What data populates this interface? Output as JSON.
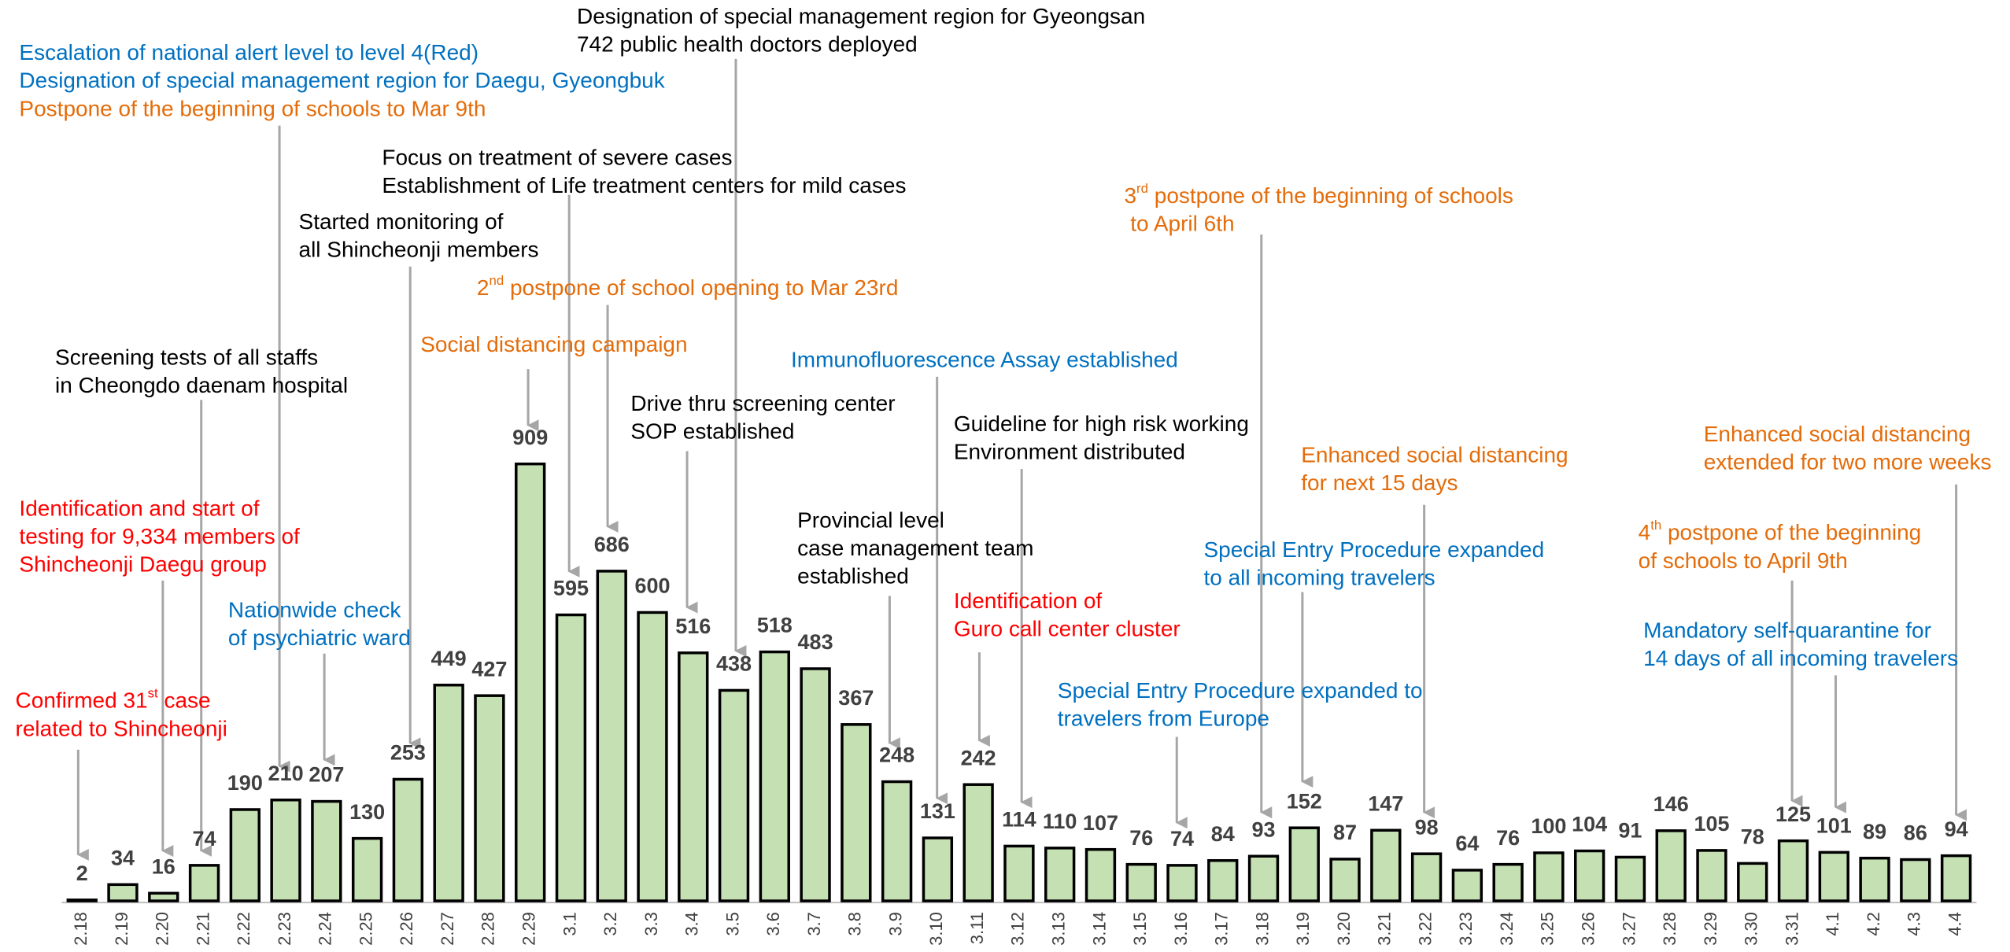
{
  "chart_data": {
    "type": "bar",
    "categories": [
      "2.18",
      "2.19",
      "2.20",
      "2.21",
      "2.22",
      "2.23",
      "2.24",
      "2.25",
      "2.26",
      "2.27",
      "2.28",
      "2.29",
      "3.1",
      "3.2",
      "3.3",
      "3.4",
      "3.5",
      "3.6",
      "3.7",
      "3.8",
      "3.9",
      "3.10",
      "3.11",
      "3.12",
      "3.13",
      "3.14",
      "3.15",
      "3.16",
      "3.17",
      "3.18",
      "3.19",
      "3.20",
      "3.21",
      "3.22",
      "3.23",
      "3.24",
      "3.25",
      "3.26",
      "3.27",
      "3.28",
      "3.29",
      "3.30",
      "3.31",
      "4.1",
      "4.2",
      "4.3",
      "4.4"
    ],
    "values": [
      2,
      34,
      16,
      74,
      190,
      210,
      207,
      130,
      253,
      449,
      427,
      909,
      595,
      686,
      600,
      516,
      438,
      518,
      483,
      367,
      248,
      131,
      242,
      114,
      110,
      107,
      76,
      74,
      84,
      93,
      152,
      87,
      147,
      98,
      64,
      76,
      100,
      104,
      91,
      146,
      105,
      78,
      125,
      101,
      89,
      86,
      94
    ],
    "color": "#c5e0b3",
    "annotations": [
      {
        "lines": [
          "Escalation of national alert level to level 4(Red)",
          "Designation of special management region for Daegu, Gyeongbuk"
        ],
        "color": "#0070c0"
      },
      {
        "lines": [
          "Postpone of the beginning of schools to Mar 9th"
        ],
        "color": "#e46c0a"
      },
      {
        "lines": [
          "Designation of special management region for Gyeongsan",
          "742 public health doctors deployed"
        ],
        "color": "#000000"
      },
      {
        "lines": [
          "Focus on treatment of severe cases",
          "Establishment of Life treatment centers for mild cases"
        ],
        "color": "#000000"
      },
      {
        "lines": [
          "Started monitoring of",
          "all Shincheonji members"
        ],
        "color": "#000000"
      },
      {
        "lines": [
          "2nd postpone of school opening to Mar 23rd"
        ],
        "color": "#e46c0a"
      },
      {
        "lines": [
          "Social distancing campaign"
        ],
        "color": "#e46c0a"
      },
      {
        "lines": [
          "Screening tests of all staffs",
          "in Cheongdo daenam hospital"
        ],
        "color": "#000000"
      },
      {
        "lines": [
          "Identification and start of",
          "testing for 9,334 members of",
          "Shincheonji Daegu group"
        ],
        "color": "#ff0000"
      },
      {
        "lines": [
          "Nationwide check",
          "of psychiatric ward"
        ],
        "color": "#0070c0"
      },
      {
        "lines": [
          "Confirmed 31st case",
          "related to Shincheonji"
        ],
        "color": "#ff0000"
      },
      {
        "lines": [
          "Immunofluorescence Assay established"
        ],
        "color": "#0070c0"
      },
      {
        "lines": [
          "Drive thru screening center",
          "SOP established"
        ],
        "color": "#000000"
      },
      {
        "lines": [
          "Guideline for high risk working",
          "Environment distributed"
        ],
        "color": "#000000"
      },
      {
        "lines": [
          "Provincial level",
          "case management team",
          "established"
        ],
        "color": "#000000"
      },
      {
        "lines": [
          "Identification of",
          "Guro call center cluster"
        ],
        "color": "#ff0000"
      },
      {
        "lines": [
          "3rd postpone of the beginning of schools",
          " to April 6th"
        ],
        "color": "#e46c0a"
      },
      {
        "lines": [
          "Enhanced social distancing",
          "for next 15 days"
        ],
        "color": "#e46c0a"
      },
      {
        "lines": [
          "Special Entry Procedure expanded",
          "to all incoming travelers"
        ],
        "color": "#0070c0"
      },
      {
        "lines": [
          "Special Entry Procedure expanded to",
          "travelers from Europe"
        ],
        "color": "#0070c0"
      },
      {
        "lines": [
          "Enhanced social distancing",
          "extended for two more weeks"
        ],
        "color": "#e46c0a"
      },
      {
        "lines": [
          "4th postpone of the beginning",
          "of schools to April 9th"
        ],
        "color": "#e46c0a"
      },
      {
        "lines": [
          "Mandatory self-quarantine for",
          "14 days of all incoming travelers"
        ],
        "color": "#0070c0"
      }
    ]
  }
}
